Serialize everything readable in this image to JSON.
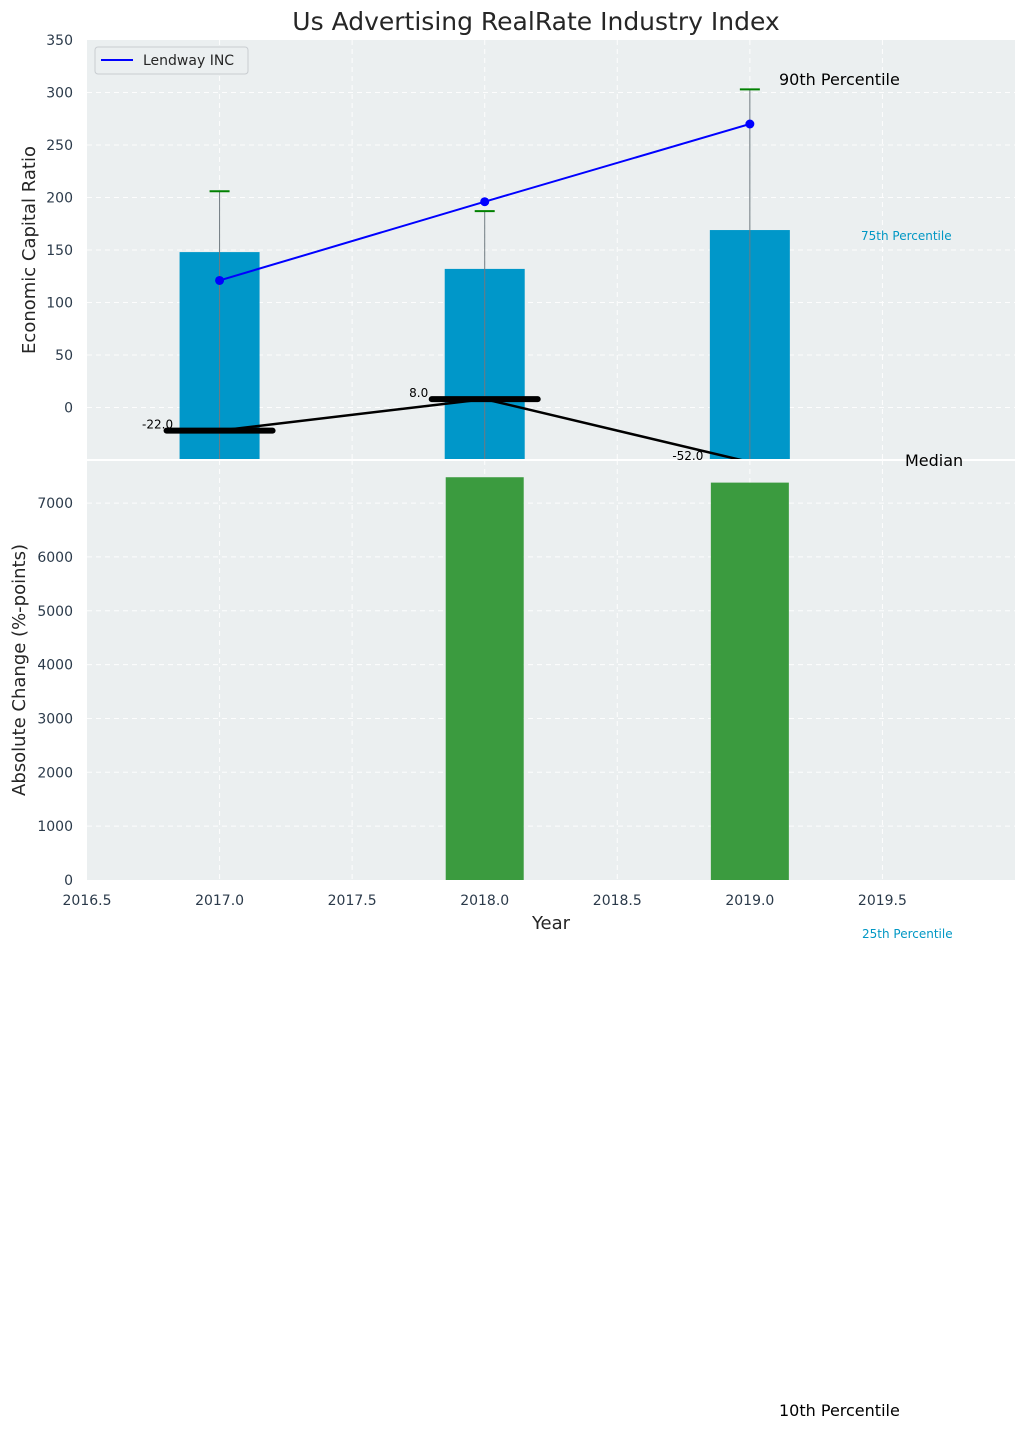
{
  "chart_data": [
    {
      "type": "bar",
      "panel": "top",
      "title": "Us Advertising RealRate Industry Index",
      "ylabel": "Economic Capital Ratio",
      "xlabel": "",
      "ylim": [
        -50,
        350
      ],
      "yticks": [
        0,
        50,
        100,
        150,
        200,
        250,
        300,
        350
      ],
      "x": [
        2017.0,
        2018.0,
        2019.0
      ],
      "bars": {
        "name": "75th Percentile",
        "values": [
          148,
          132,
          169
        ],
        "bottom": -50,
        "color": "#0097c9"
      },
      "upper": {
        "name": "90th Percentile",
        "values": [
          206,
          187,
          303
        ],
        "color": "#008000"
      },
      "median": {
        "name": "Median",
        "values": [
          -22.0,
          8.0,
          -52.0
        ],
        "labels": [
          "-22.0",
          "8.0",
          "-52.0"
        ],
        "color": "#000000"
      },
      "company": {
        "name": "Lendway INC",
        "values": [
          121,
          196,
          270
        ],
        "color": "#0000ff"
      },
      "legend": {
        "position": "top-left",
        "entries": [
          "Lendway INC"
        ]
      },
      "annotations": [
        "90th Percentile",
        "75th Percentile",
        "Median",
        "25th Percentile",
        "10th Percentile"
      ],
      "grid": true
    },
    {
      "type": "bar",
      "panel": "bottom",
      "title": "",
      "ylabel": "Absolute Change (%-points)",
      "xlabel": "Year",
      "ylim": [
        0,
        7800
      ],
      "yticks": [
        0,
        1000,
        2000,
        3000,
        4000,
        5000,
        6000,
        7000
      ],
      "xlim": [
        2016.5,
        2020.0
      ],
      "xticks": [
        2016.5,
        2017.0,
        2017.5,
        2018.0,
        2018.5,
        2019.0,
        2019.5
      ],
      "xtick_labels": [
        "2016.5",
        "2017.0",
        "2017.5",
        "2018.0",
        "2018.5",
        "2019.0",
        "2019.5"
      ],
      "x": [
        2018.0,
        2019.0
      ],
      "values": [
        7480,
        7380
      ],
      "color": "#3b9b3f",
      "grid": true
    }
  ],
  "colors": {
    "panel_bg": "#ebeff0",
    "bar_blue": "#0097c9",
    "bar_green": "#3b9b3f",
    "company_line": "#0000ff",
    "whisker": "#008000",
    "median": "#000000"
  }
}
